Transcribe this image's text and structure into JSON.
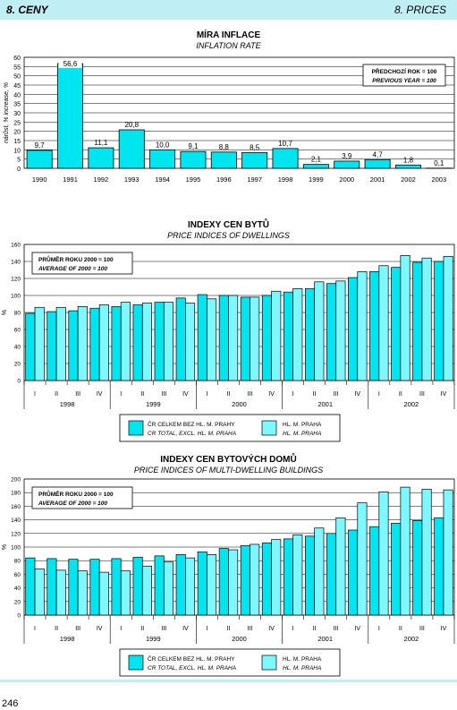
{
  "header": {
    "section": "8. CENY",
    "section_en": "8. PRICES"
  },
  "page_number": "246",
  "colors": {
    "fill1": "#00e5f0",
    "fill2": "#7ff7ff",
    "stroke": "#000000",
    "header_bg": "#bfeff5"
  },
  "chart_data": [
    {
      "type": "bar",
      "title": "MÍRA INFLACE",
      "subtitle": "INFLATION RATE",
      "ylabel": "nárůst, %     increase, %",
      "ylim": [
        0,
        60
      ],
      "yticks": [
        0,
        5,
        10,
        15,
        20,
        25,
        30,
        35,
        40,
        45,
        50,
        55,
        60
      ],
      "categories": [
        "1990",
        "1991",
        "1992",
        "1993",
        "1994",
        "1995",
        "1996",
        "1997",
        "1998",
        "1999",
        "2000",
        "2001",
        "2002",
        "2003"
      ],
      "values": [
        9.7,
        56.6,
        11.1,
        20.8,
        10.0,
        9.1,
        8.8,
        8.5,
        10.7,
        2.1,
        3.9,
        4.7,
        1.8,
        0.1
      ],
      "value_labels": [
        "9,7",
        "56,6",
        "11,1",
        "20,8",
        "10,0",
        "9,1",
        "8,8",
        "8,5",
        "10,7",
        "2,1",
        "3,9",
        "4,7",
        "1,8",
        "0,1"
      ],
      "note": [
        "PŘEDCHOZÍ ROK = 100",
        "PREVIOUS YEAR = 100"
      ],
      "grid": true
    },
    {
      "type": "bar",
      "title": "INDEXY CEN BYTŮ",
      "subtitle": "PRICE INDICES OF DWELLINGS",
      "ylabel": "%",
      "ylim": [
        0,
        160
      ],
      "yticks": [
        0,
        20,
        40,
        60,
        80,
        100,
        120,
        140,
        160
      ],
      "quarters": [
        "I",
        "II",
        "III",
        "IV",
        "I",
        "II",
        "III",
        "IV",
        "I",
        "II",
        "III",
        "IV",
        "I",
        "II",
        "III",
        "IV",
        "I",
        "II",
        "III",
        "IV"
      ],
      "years": [
        "1998",
        "1999",
        "2000",
        "2001",
        "2002"
      ],
      "series": [
        {
          "name": "ČR CELKEM BEZ HL. M. PRAHY",
          "name_en": "CR TOTAL, EXCL. HL. M. PRAHA",
          "values": [
            79,
            81,
            82,
            85,
            87,
            89,
            92,
            97,
            101,
            100,
            98,
            100,
            104,
            108,
            114,
            121,
            128,
            133,
            139,
            140
          ]
        },
        {
          "name": "HL. M. PRAHA",
          "name_en": "HL. M. PRAHA",
          "values": [
            86,
            86,
            87,
            89,
            92,
            91,
            92,
            91,
            96,
            100,
            98,
            105,
            108,
            116,
            117,
            128,
            135,
            147,
            144,
            146
          ]
        }
      ],
      "note": [
        "PRŮMĚR ROKU 2000 = 100",
        "AVERAGE OF 2000 = 100"
      ],
      "grid": true
    },
    {
      "type": "bar",
      "title": "INDEXY CEN BYTOVÝCH DOMŮ",
      "subtitle": "PRICE INDICES OF MULTI-DWELLING BUILDINGS",
      "ylabel": "%",
      "ylim": [
        0,
        200
      ],
      "yticks": [
        0,
        20,
        40,
        60,
        80,
        100,
        120,
        140,
        160,
        180,
        200
      ],
      "quarters": [
        "I",
        "II",
        "III",
        "IV",
        "I",
        "II",
        "III",
        "IV",
        "I",
        "II",
        "III",
        "IV",
        "I",
        "II",
        "III",
        "IV",
        "I",
        "II",
        "III",
        "IV"
      ],
      "years": [
        "1998",
        "1999",
        "2000",
        "2001",
        "2002"
      ],
      "series": [
        {
          "name": "ČR CELKEM BEZ HL. M. PRAHY",
          "name_en": "CR TOTAL, EXCL. HL. M. PRAHA",
          "values": [
            84,
            83,
            82,
            82,
            83,
            85,
            87,
            89,
            93,
            98,
            102,
            106,
            112,
            116,
            120,
            125,
            130,
            135,
            139,
            143
          ]
        },
        {
          "name": "HL. M. PRAHA",
          "name_en": "HL. M. PRAHA",
          "values": [
            68,
            66,
            65,
            63,
            65,
            72,
            78,
            84,
            89,
            96,
            104,
            111,
            118,
            128,
            143,
            165,
            181,
            188,
            185,
            184
          ]
        }
      ],
      "note": [
        "PRŮMĚR ROKU 2000 = 100",
        "AVERAGE OF 2000 = 100"
      ],
      "grid": true
    }
  ]
}
